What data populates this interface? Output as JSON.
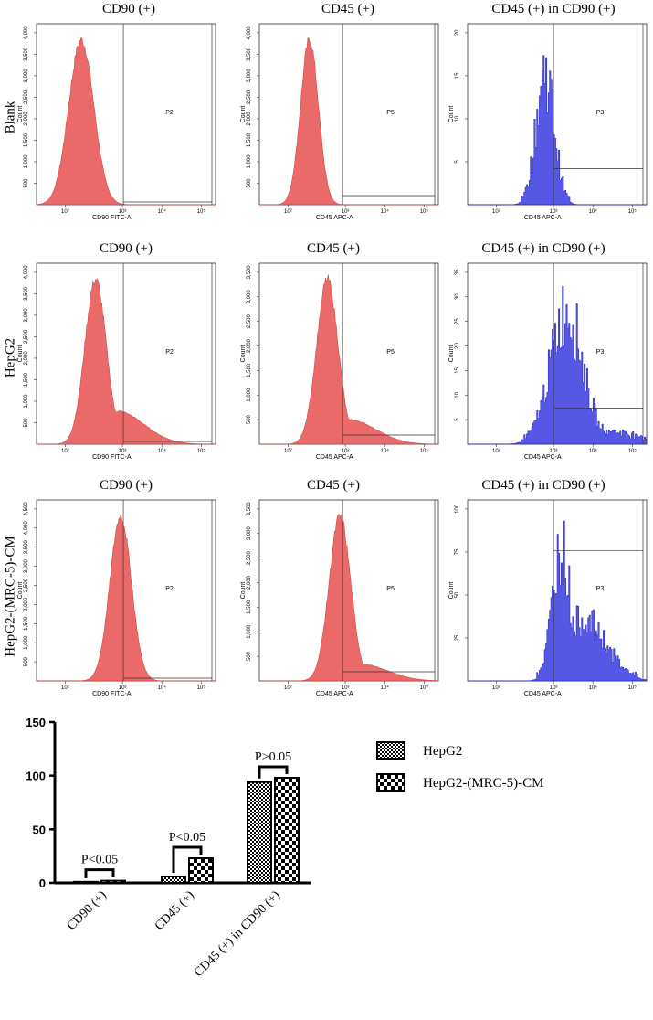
{
  "rows": [
    {
      "label": "Blank",
      "panels": [
        {
          "title": "CD90 (+)",
          "gate": "P2",
          "xlabel": "CD90 FITC-A",
          "ylabel": "Count",
          "yticks": [
            "500",
            "1,000",
            "1,500",
            "2,000",
            "2,500",
            "3,000",
            "3,500",
            "4,000"
          ],
          "xticks": [
            "10²",
            "10³",
            "10⁴",
            "10⁵"
          ],
          "color": "#e85a5a",
          "peak": 0.25,
          "width": 0.07,
          "tail": 0.0
        },
        {
          "title": "CD45 (+)",
          "gate": "P5",
          "xlabel": "CD45 APC-A",
          "ylabel": "Count",
          "yticks": [
            "500",
            "1,000",
            "1,500",
            "2,000",
            "2,500",
            "3,000",
            "3,500",
            "4,000"
          ],
          "xticks": [
            "10²",
            "10³",
            "10⁴",
            "10⁵"
          ],
          "color": "#e85a5a",
          "peak": 0.28,
          "width": 0.05,
          "tail": 0.0
        },
        {
          "title": "CD45 (+) in CD90 (+)",
          "gate": "P3",
          "xlabel": "CD45 APC-A",
          "ylabel": "Count",
          "yticks": [
            "5",
            "10",
            "15",
            "20"
          ],
          "xticks": [
            "10²",
            "10³",
            "10⁴",
            "10⁵"
          ],
          "color": "#3a3ae0",
          "peak": 0.43,
          "width": 0.05,
          "tail": 0.0
        }
      ]
    },
    {
      "label": "HepG2",
      "panels": [
        {
          "title": "CD90 (+)",
          "gate": "P2",
          "xlabel": "CD90 FITC-A",
          "ylabel": "Count",
          "yticks": [
            "500",
            "1,000",
            "1,500",
            "2,000",
            "2,500",
            "3,000",
            "3,500",
            "4,000"
          ],
          "xticks": [
            "10²",
            "10³",
            "10⁴",
            "10⁵"
          ],
          "color": "#e85a5a",
          "peak": 0.33,
          "width": 0.06,
          "tail": 0.2
        },
        {
          "title": "CD45 (+)",
          "gate": "P5",
          "xlabel": "CD45 APC-A",
          "ylabel": "Count",
          "yticks": [
            "500",
            "1,000",
            "1,500",
            "2,000",
            "2,500",
            "3,000",
            "3,500"
          ],
          "xticks": [
            "10²",
            "10³",
            "10⁴",
            "10⁵"
          ],
          "color": "#e85a5a",
          "peak": 0.38,
          "width": 0.06,
          "tail": 0.15
        },
        {
          "title": "CD45 (+) in CD90 (+)",
          "gate": "P3",
          "xlabel": "CD45 APC-A",
          "ylabel": "Count",
          "yticks": [
            "5",
            "10",
            "15",
            "20",
            "25",
            "30",
            "35"
          ],
          "xticks": [
            "10²",
            "10³",
            "10⁴",
            "10⁵"
          ],
          "color": "#3a3ae0",
          "peak": 0.55,
          "width": 0.09,
          "tail": 0.1
        }
      ]
    },
    {
      "label": "HepG2-(MRC-5)-CM",
      "panels": [
        {
          "title": "CD90 (+)",
          "gate": "P2",
          "xlabel": "CD90 FITC-A",
          "ylabel": "Count",
          "yticks": [
            "500",
            "1,000",
            "1,500",
            "2,000",
            "2,500",
            "3,000",
            "3,500",
            "4,000",
            "4,500"
          ],
          "xticks": [
            "10²",
            "10³",
            "10⁴",
            "10⁵"
          ],
          "color": "#e85a5a",
          "peak": 0.47,
          "width": 0.06,
          "tail": 0.0
        },
        {
          "title": "CD45 (+)",
          "gate": "P5",
          "xlabel": "CD45 APC-A",
          "ylabel": "Count",
          "yticks": [
            "500",
            "1,000",
            "1,500",
            "2,000",
            "2,500",
            "3,000",
            "3,500"
          ],
          "xticks": [
            "10²",
            "10³",
            "10⁴",
            "10⁵"
          ],
          "color": "#e85a5a",
          "peak": 0.45,
          "width": 0.06,
          "tail": 0.1
        },
        {
          "title": "CD45 (+) in CD90 (+)",
          "gate": "P3",
          "xlabel": "CD45 APC-A",
          "ylabel": "Count",
          "yticks": [
            "25",
            "50",
            "75",
            "100"
          ],
          "xticks": [
            "10²",
            "10³",
            "10⁴",
            "10⁵"
          ],
          "color": "#3a3ae0",
          "peak": 0.52,
          "width": 0.05,
          "tail": 0.45
        }
      ]
    }
  ],
  "chart_data": {
    "type": "bar",
    "categories": [
      "CD90 (+)",
      "CD45 (+)",
      "CD45 (+) in CD90 (+)"
    ],
    "series": [
      {
        "name": "HepG2",
        "values": [
          1,
          6,
          94
        ],
        "pattern": "fine"
      },
      {
        "name": "HepG2-(MRC-5)-CM",
        "values": [
          2,
          23,
          98
        ],
        "pattern": "coarse"
      }
    ],
    "ylim": [
      0,
      150
    ],
    "yticks": [
      "0",
      "50",
      "100",
      "150"
    ],
    "ytick_values": [
      0,
      50,
      100,
      150
    ],
    "significance": [
      "P<0.05",
      "P<0.05",
      "P>0.05"
    ],
    "legend": "top-right",
    "title": "",
    "xlabel": "",
    "ylabel": ""
  }
}
